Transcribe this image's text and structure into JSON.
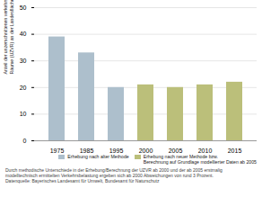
{
  "chart_data": {
    "type": "bar",
    "categories": [
      "1975",
      "1985",
      "1995",
      "2000",
      "2005",
      "2010",
      "2015"
    ],
    "series": [
      {
        "name": "Erhebung nach alter Methode",
        "color": "#adbfcc",
        "values": [
          39,
          33,
          20,
          null,
          null,
          null,
          null
        ]
      },
      {
        "name": "Erhebung nach neuer Methode bzw.\nBerechnung auf Grundlage modellierter Daten ab 2005",
        "color": "#bbbf7a",
        "values": [
          null,
          null,
          null,
          21,
          20,
          21,
          22
        ]
      }
    ],
    "ylabel": "Anteil der unzerschnittenen verkehrsarmen\nRäume (UZVR) an der Landesfläche in Prozent",
    "ylim": [
      0,
      50
    ],
    "yticks": [
      0,
      10,
      20,
      30,
      40,
      50
    ],
    "grid": true,
    "legend": "bottom",
    "annotations": [
      "Durch methodische Unterschiede in der Erhebung/Berechnung der UZVR ab 2000 und der ab 2005 erstmalig",
      "modelltechnisch ermittelten Verkehrsbelastung ergeben sich ab 2000 Abweichungen von rund 3 Prozent.",
      "Datenquelle: Bayerisches Landesamt für Umwelt, Bundesamt für Naturschutz"
    ]
  }
}
